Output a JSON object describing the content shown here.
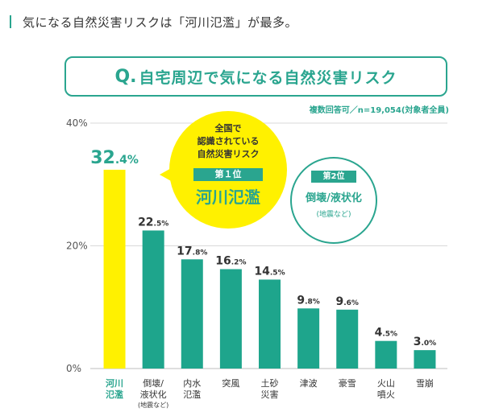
{
  "heading": {
    "text": "気になる自然災害リスクは「河川氾濫」が最多。"
  },
  "question": {
    "prefix": "Q.",
    "text": "自宅周辺で気になる自然災害リスク"
  },
  "note": "複数回答可／n=19,054(対象者全員)",
  "callout_first": {
    "line1": "全国で",
    "line2": "認識されている",
    "line3": "自然災害リスク",
    "badge": "第１位",
    "main": "河川氾濫"
  },
  "callout_second": {
    "badge": "第2位",
    "main": "倒壊/液状化",
    "sub": "(地震など)"
  },
  "colors": {
    "accent": "#2aa58f",
    "highlight": "#fff100",
    "bar": "#1ea58c",
    "grid": "#d8d8d8"
  },
  "chart_data": {
    "type": "bar",
    "ylim": [
      0,
      40
    ],
    "yticks": [
      "0%",
      "20%",
      "40%"
    ],
    "ytick_values": [
      0,
      20,
      40
    ],
    "categories": [
      [
        "河川",
        "氾濫"
      ],
      [
        "倒壊/",
        "液状化",
        "(地震など)"
      ],
      [
        "内水",
        "氾濫"
      ],
      [
        "突風"
      ],
      [
        "土砂",
        "災害"
      ],
      [
        "津波"
      ],
      [
        "豪雪"
      ],
      [
        "火山",
        "噴火"
      ],
      [
        "雪崩"
      ]
    ],
    "values": [
      32.4,
      22.5,
      17.8,
      16.2,
      14.5,
      9.8,
      9.6,
      4.5,
      3.0
    ],
    "value_int": [
      "32",
      "22",
      "17",
      "16",
      "14",
      "9",
      "9",
      "4",
      "3"
    ],
    "value_dec": [
      ".4%",
      ".5%",
      ".8%",
      ".2%",
      ".5%",
      ".8%",
      ".6%",
      ".5%",
      ".0%"
    ],
    "highlight_index": 0
  }
}
